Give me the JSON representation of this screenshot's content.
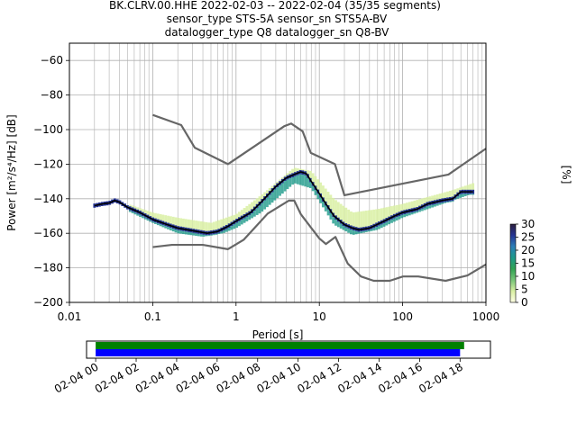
{
  "title_lines": [
    "BK.CLRV.00.HHE   2022-02-03 -- 2022-02-04  (35/35 segments)",
    "sensor_type STS-5A sensor_sn STS5A-BV",
    "datalogger_type Q8 datalogger_sn Q8-BV"
  ],
  "colorbar": {
    "label": "[%]",
    "ticks": [
      "0",
      "5",
      "10",
      "15",
      "20",
      "25",
      "30"
    ],
    "range": [
      0,
      30
    ],
    "colors": [
      "#ffffe5",
      "#d9f0a3",
      "#78c679",
      "#31a354",
      "#1d9a8a",
      "#2c7fb8",
      "#253494",
      "#2d1e3e"
    ]
  },
  "chart_data": [
    {
      "type": "heatmap",
      "title": "BK.CLRV.00.HHE   2022-02-03 -- 2022-02-04  (35/35 segments)",
      "xlabel": "Period [s]",
      "ylabel": "Power [m²/s⁴/Hz] [dB]",
      "x_scale": "log",
      "xlim": [
        0.01,
        1000
      ],
      "ylim": [
        -200,
        -50
      ],
      "x_ticks": [
        0.01,
        0.1,
        1,
        10,
        100,
        1000
      ],
      "x_tick_labels": [
        "0.01",
        "0.1",
        "1",
        "10",
        "100",
        "1000"
      ],
      "y_ticks": [
        -200,
        -180,
        -160,
        -140,
        -120,
        -100,
        -80,
        -60
      ],
      "y_tick_labels": [
        "−200",
        "−180",
        "−160",
        "−140",
        "−120",
        "−100",
        "−80",
        "−60"
      ],
      "grid": true,
      "series": [
        {
          "name": "",
          "style": "noise-model-high",
          "color": "#666666",
          "points": [
            [
              0.1,
              -91.5
            ],
            [
              0.22,
              -97.4
            ],
            [
              0.32,
              -110.5
            ],
            [
              0.8,
              -120
            ],
            [
              3.8,
              -98
            ],
            [
              4.6,
              -96.5
            ],
            [
              6.3,
              -101
            ],
            [
              7.9,
              -113.5
            ],
            [
              15.4,
              -120
            ],
            [
              20,
              -138
            ],
            [
              354.8,
              -126
            ],
            [
              1000,
              -111
            ]
          ]
        },
        {
          "name": "",
          "style": "noise-model-low",
          "color": "#666666",
          "points": [
            [
              0.1,
              -168
            ],
            [
              0.17,
              -166.7
            ],
            [
              0.4,
              -166.7
            ],
            [
              0.8,
              -169.2
            ],
            [
              1.24,
              -163.7
            ],
            [
              2.4,
              -148.6
            ],
            [
              4.3,
              -141.1
            ],
            [
              5,
              -141.1
            ],
            [
              6,
              -149
            ],
            [
              10,
              -163
            ],
            [
              12,
              -166.2
            ],
            [
              15.6,
              -162.1
            ],
            [
              21.9,
              -177.5
            ],
            [
              31.6,
              -185
            ],
            [
              45,
              -187.5
            ],
            [
              70,
              -187.5
            ],
            [
              101,
              -185
            ],
            [
              154,
              -185
            ],
            [
              328,
              -187.5
            ],
            [
              600,
              -184.4
            ],
            [
              1000,
              -178
            ]
          ]
        },
        {
          "name": "",
          "style": "mode",
          "color": "#000000",
          "points": [
            [
              0.02,
              -144
            ],
            [
              0.025,
              -143
            ],
            [
              0.03,
              -142.5
            ],
            [
              0.035,
              -141
            ],
            [
              0.04,
              -142
            ],
            [
              0.05,
              -145
            ],
            [
              0.07,
              -148
            ],
            [
              0.1,
              -152
            ],
            [
              0.15,
              -155
            ],
            [
              0.2,
              -157
            ],
            [
              0.3,
              -158.5
            ],
            [
              0.45,
              -160
            ],
            [
              0.6,
              -159
            ],
            [
              0.8,
              -156
            ],
            [
              1,
              -153
            ],
            [
              1.5,
              -148
            ],
            [
              2,
              -142
            ],
            [
              3,
              -133
            ],
            [
              4,
              -128
            ],
            [
              5,
              -126
            ],
            [
              6,
              -124.5
            ],
            [
              7,
              -125.5
            ],
            [
              8,
              -130
            ],
            [
              10,
              -137
            ],
            [
              12,
              -143
            ],
            [
              15,
              -150
            ],
            [
              20,
              -155
            ],
            [
              25,
              -157
            ],
            [
              30,
              -158
            ],
            [
              40,
              -157
            ],
            [
              60,
              -153
            ],
            [
              80,
              -150
            ],
            [
              100,
              -148
            ],
            [
              150,
              -146
            ],
            [
              200,
              -143
            ],
            [
              300,
              -141
            ],
            [
              400,
              -140
            ],
            [
              500,
              -136
            ],
            [
              700,
              -136
            ]
          ]
        },
        {
          "name": "",
          "style": "density-upper",
          "color": "#d9f0a3",
          "points": [
            [
              0.05,
              -143
            ],
            [
              0.1,
              -148
            ],
            [
              0.2,
              -151
            ],
            [
              0.5,
              -154
            ],
            [
              1,
              -149
            ],
            [
              2,
              -138
            ],
            [
              5,
              -122
            ],
            [
              8,
              -124
            ],
            [
              15,
              -140
            ],
            [
              25,
              -148
            ],
            [
              50,
              -146
            ],
            [
              100,
              -143
            ],
            [
              200,
              -139
            ],
            [
              400,
              -135
            ],
            [
              700,
              -131
            ]
          ]
        },
        {
          "name": "",
          "style": "density-lower",
          "color": "#1d9a8a",
          "points": [
            [
              0.05,
              -147
            ],
            [
              0.1,
              -154
            ],
            [
              0.2,
              -160
            ],
            [
              0.4,
              -162
            ],
            [
              0.7,
              -160
            ],
            [
              1,
              -157
            ],
            [
              2,
              -148
            ],
            [
              5,
              -131
            ],
            [
              8,
              -134
            ],
            [
              15,
              -155
            ],
            [
              25,
              -161
            ],
            [
              50,
              -158
            ],
            [
              100,
              -151
            ],
            [
              200,
              -146
            ],
            [
              400,
              -141
            ],
            [
              700,
              -137
            ]
          ]
        }
      ]
    },
    {
      "type": "bar",
      "title": "",
      "xlabel": "",
      "ylabel": "",
      "x_tick_labels": [
        "02-04 00",
        "02-04 02",
        "02-04 04",
        "02-04 06",
        "02-04 08",
        "02-04 10",
        "02-04 12",
        "02-04 14",
        "02-04 16",
        "02-04 18"
      ],
      "x_ticks_hours": [
        0,
        2,
        4,
        6,
        8,
        10,
        12,
        14,
        16,
        18
      ],
      "xlim_hours": [
        -0.45,
        19.5
      ],
      "bars": [
        {
          "name": "",
          "color": "#008000",
          "start_hours": 0,
          "end_hours": 18.2
        },
        {
          "name": "",
          "color": "#0000ff",
          "start_hours": 0,
          "end_hours": 18.0
        }
      ]
    }
  ]
}
